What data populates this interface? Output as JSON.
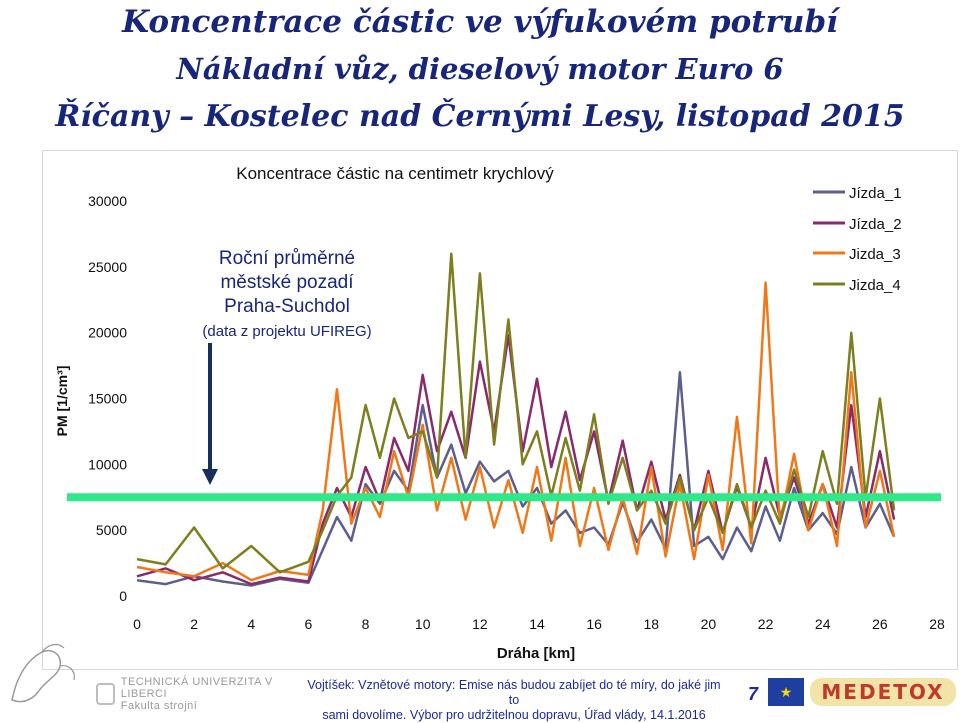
{
  "header": {
    "line1": "Koncentrace částic ve výfukovém potrubí",
    "line2": "Nákladní vůz, dieselový motor Euro 6",
    "line3": "Říčany – Kostelec nad Černými Lesy, listopad 2015"
  },
  "chart_data": {
    "type": "line",
    "title": "Koncentrace částic na centimetr krychlový",
    "xlabel": "Dráha [km]",
    "ylabel": "PM [1/cm³]",
    "xlim": [
      0,
      28
    ],
    "ylim": [
      0,
      30000
    ],
    "x_ticks": [
      "0",
      "2",
      "4",
      "6",
      "8",
      "10",
      "12",
      "14",
      "16",
      "18",
      "20",
      "22",
      "24",
      "26",
      "28"
    ],
    "y_ticks": [
      "0",
      "5000",
      "10000",
      "15000",
      "20000",
      "25000",
      "30000"
    ],
    "grid": false,
    "legend_position": "top-right",
    "reference_line": {
      "value": 7500,
      "color": "#2ee88a"
    },
    "annotation": {
      "lines": [
        "Roční průměrné",
        "městské pozadí",
        "Praha-Suchdol",
        "(data z projektu UFIREG)"
      ],
      "color": "#17267a"
    },
    "series": [
      {
        "name": "Jízda_1",
        "color": "#5c5f8e",
        "x": [
          0,
          1,
          2,
          3,
          4,
          5,
          6,
          6.5,
          7,
          7.5,
          8,
          8.5,
          9,
          9.5,
          10,
          10.5,
          11,
          11.5,
          12,
          12.5,
          13,
          13.5,
          14,
          14.5,
          15,
          15.5,
          16,
          16.5,
          17,
          17.5,
          18,
          18.5,
          19,
          19.5,
          20,
          20.5,
          21,
          21.5,
          22,
          22.5,
          23,
          23.5,
          24,
          24.5,
          25,
          25.5,
          26,
          26.5
        ],
        "values": [
          1200,
          900,
          1500,
          1100,
          800,
          1300,
          1000,
          3500,
          6000,
          4200,
          8500,
          7000,
          9500,
          8000,
          14500,
          9000,
          11500,
          7800,
          10200,
          8700,
          9500,
          6800,
          8200,
          5500,
          6500,
          4800,
          5200,
          3900,
          7100,
          4100,
          5800,
          3600,
          17000,
          3800,
          4500,
          2800,
          5200,
          3400,
          6800,
          4200,
          8200,
          5000,
          6300,
          4700,
          9800,
          5200,
          7000,
          4500
        ]
      },
      {
        "name": "Jízda_2",
        "color": "#8b2a6b",
        "x": [
          0,
          1,
          2,
          3,
          4,
          5,
          6,
          6.5,
          7,
          7.5,
          8,
          8.5,
          9,
          9.5,
          10,
          10.5,
          11,
          11.5,
          12,
          12.5,
          13,
          13.5,
          14,
          14.5,
          15,
          15.5,
          16,
          16.5,
          17,
          17.5,
          18,
          18.5,
          19,
          19.5,
          20,
          20.5,
          21,
          21.5,
          22,
          22.5,
          23,
          23.5,
          24,
          24.5,
          25,
          25.5,
          26,
          26.5
        ],
        "values": [
          1500,
          2100,
          1200,
          1800,
          900,
          1400,
          1100,
          5500,
          8200,
          6000,
          9800,
          7200,
          12000,
          9500,
          16800,
          11000,
          14000,
          10500,
          17800,
          12500,
          19800,
          11000,
          16500,
          9800,
          14000,
          8800,
          12500,
          7200,
          11800,
          6500,
          10200,
          5800,
          9200,
          5000,
          9500,
          4800,
          8300,
          5200,
          10500,
          6000,
          9000,
          5500,
          8500,
          5200,
          14500,
          6000,
          11000,
          5800
        ]
      },
      {
        "name": "Jizda_3",
        "color": "#f07818",
        "x": [
          0,
          1,
          2,
          3,
          4,
          5,
          6,
          6.5,
          7,
          7.5,
          8,
          8.5,
          9,
          9.5,
          10,
          10.5,
          11,
          11.5,
          12,
          12.5,
          13,
          13.5,
          14,
          14.5,
          15,
          15.5,
          16,
          16.5,
          17,
          17.5,
          18,
          18.5,
          19,
          19.5,
          20,
          20.5,
          21,
          21.5,
          22,
          22.5,
          23,
          23.5,
          24,
          24.5,
          25,
          25.5,
          26,
          26.5
        ],
        "values": [
          2200,
          1800,
          1500,
          2500,
          1200,
          1900,
          1600,
          6500,
          15700,
          5500,
          8200,
          6000,
          11000,
          7500,
          13000,
          6500,
          10500,
          5800,
          9800,
          5200,
          8800,
          4800,
          9800,
          4200,
          10500,
          3800,
          8200,
          3500,
          7500,
          3200,
          9800,
          3000,
          8500,
          2800,
          9200,
          3500,
          13600,
          4000,
          23800,
          5500,
          10800,
          5000,
          8500,
          3800,
          17000,
          5200,
          9500,
          4500
        ]
      },
      {
        "name": "Jizda_4",
        "color": "#7e7e1e",
        "x": [
          0,
          1,
          2,
          3,
          4,
          5,
          6,
          6.5,
          7,
          7.5,
          8,
          8.5,
          9,
          9.5,
          10,
          10.5,
          11,
          11.5,
          12,
          12.5,
          13,
          13.5,
          14,
          14.5,
          15,
          15.5,
          16,
          16.5,
          17,
          17.5,
          18,
          18.5,
          19,
          19.5,
          20,
          20.5,
          21,
          21.5,
          22,
          22.5,
          23,
          23.5,
          24,
          24.5,
          25,
          25.5,
          26,
          26.5
        ],
        "values": [
          2800,
          2400,
          5200,
          2100,
          3800,
          1800,
          2600,
          5000,
          7600,
          9000,
          14500,
          10500,
          15000,
          12000,
          12500,
          9000,
          26000,
          10500,
          24500,
          11500,
          21000,
          10000,
          12500,
          7600,
          12000,
          8000,
          13800,
          7000,
          10500,
          6500,
          8000,
          5500,
          9000,
          5000,
          7500,
          4800,
          8500,
          5200,
          8000,
          5500,
          9600,
          6000,
          11000,
          7000,
          20000,
          7500,
          15000,
          6500
        ]
      }
    ]
  },
  "footer": {
    "university": "TECHNICKÁ UNIVERZITA V LIBERCI",
    "faculty": "Fakulta strojní",
    "citation_line1": "Vojtíšek: Vznětové motory: Emise nás budou zabíjet do té míry, do jaké jim to",
    "citation_line2": "sami dovolíme. Výbor pro udržitelnou dopravu, Úřad vlády, 14.1.2016",
    "page_number": "7",
    "medetox": "MEDETOX"
  }
}
